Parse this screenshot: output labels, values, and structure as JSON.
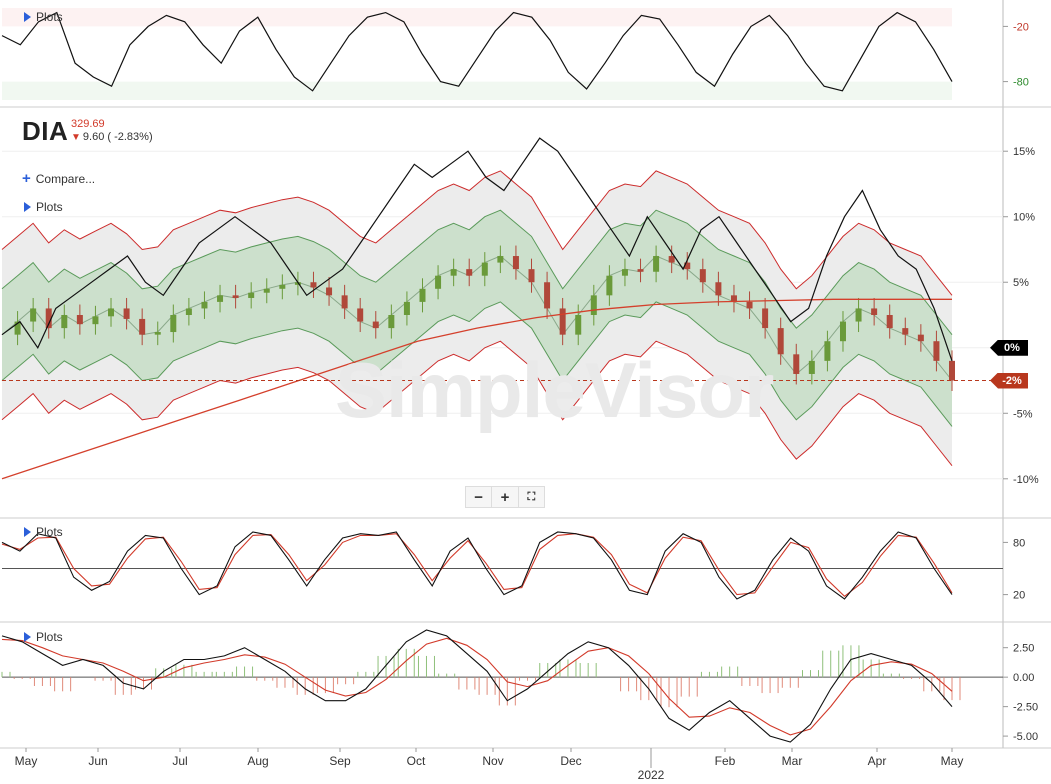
{
  "window": {
    "symbol": "DIA",
    "price": "329.69",
    "change": "9.60 ( -2.83%)",
    "compare_label": "Compare...",
    "plots_label": "Plots"
  },
  "watermark": "SimpleVisor",
  "zoom": {
    "minus": "−",
    "plus": "+",
    "fit": "⛶"
  },
  "colors": {
    "candle_up": "#6a9a3a",
    "candle_down": "#b0483a",
    "band_outer": "#cc2b2b",
    "band_inner": "#5a9a5a",
    "ma_long": "#d4402c",
    "price_line": "#111111",
    "badge_zero": "#000000",
    "badge_last": "#b8371d"
  },
  "icons": {
    "plots": "triangle-right-icon",
    "compare": "plus-icon",
    "change": "arrow-down-icon"
  },
  "chart_data": [
    {
      "panel": "top-oscillator",
      "type": "line",
      "y_ticks": [
        "-20",
        "-80"
      ],
      "ylim": [
        -100,
        0
      ],
      "series": [
        {
          "values": [
            -30,
            -40,
            -15,
            -5,
            -60,
            -75,
            -85,
            -40,
            -20,
            -8,
            -15,
            -40,
            -60,
            -25,
            -10,
            -45,
            -75,
            -90,
            -60,
            -30,
            -10,
            -5,
            -15,
            -50,
            -80,
            -85,
            -55,
            -25,
            -5,
            -10,
            -35,
            -70,
            -88,
            -60,
            -30,
            -8,
            -12,
            -40,
            -70,
            -85,
            -50,
            -20,
            -8,
            -30,
            -60,
            -85,
            -90,
            -55,
            -20,
            -5,
            -15,
            -45,
            -80
          ]
        }
      ]
    },
    {
      "panel": "main-price",
      "type": "candlestick",
      "x_ticks": [
        "May",
        "Jun",
        "Jul",
        "Aug",
        "Sep",
        "Oct",
        "Nov",
        "Dec",
        "2022",
        "Feb",
        "Mar",
        "Apr",
        "May"
      ],
      "y_ticks": [
        "15%",
        "10%",
        "5%",
        "0%",
        "-5%",
        "-10%"
      ],
      "ylim": [
        -12,
        17
      ],
      "candles": [
        1.0,
        2.0,
        3.0,
        1.5,
        2.5,
        1.8,
        2.4,
        3.0,
        2.2,
        1.0,
        1.2,
        2.5,
        3.0,
        3.5,
        4.0,
        3.8,
        4.2,
        4.5,
        4.8,
        5.0,
        4.6,
        4.0,
        3.0,
        2.0,
        1.5,
        2.5,
        3.5,
        4.5,
        5.5,
        6.0,
        5.5,
        6.5,
        7.0,
        6.0,
        5.0,
        3.0,
        1.0,
        2.5,
        4.0,
        5.5,
        6.0,
        5.8,
        7.0,
        6.5,
        6.0,
        5.0,
        4.0,
        3.5,
        3.0,
        1.5,
        -0.5,
        -2.0,
        -1.0,
        0.5,
        2.0,
        3.0,
        2.5,
        1.5,
        1.0,
        0.5,
        -1.0,
        -2.5
      ],
      "price_line": [
        1,
        2,
        0,
        3,
        4,
        5,
        6,
        7,
        5,
        4,
        6,
        8,
        9,
        10,
        9,
        8,
        6,
        4,
        5,
        6,
        8,
        10,
        12,
        14,
        13,
        14,
        15,
        13,
        12,
        14,
        16,
        15,
        13,
        11,
        9,
        7,
        10,
        8,
        6,
        9,
        10,
        8,
        6,
        4,
        2,
        3,
        7,
        10,
        12,
        9,
        7,
        6,
        3,
        -1
      ],
      "ma_long": [
        -10,
        -8.5,
        -7,
        -5.5,
        -4,
        -2.5,
        -1,
        0.5,
        1.5,
        2.3,
        2.9,
        3.3,
        3.5,
        3.6,
        3.7,
        3.7,
        3.7
      ],
      "legend_badges": [
        {
          "label": "0%",
          "value": 0
        },
        {
          "label": "-2%",
          "value": -2.5
        }
      ]
    },
    {
      "panel": "stochastic",
      "type": "line",
      "y_ticks": [
        "80",
        "20"
      ],
      "ylim": [
        0,
        100
      ],
      "series": [
        {
          "values": [
            80,
            70,
            90,
            85,
            40,
            25,
            35,
            70,
            88,
            85,
            50,
            20,
            30,
            75,
            92,
            88,
            60,
            30,
            60,
            85,
            90,
            88,
            92,
            60,
            30,
            70,
            85,
            50,
            20,
            30,
            80,
            92,
            90,
            85,
            60,
            25,
            20,
            70,
            90,
            80,
            40,
            15,
            25,
            60,
            85,
            70,
            30,
            15,
            40,
            70,
            92,
            85,
            50,
            20
          ]
        },
        {
          "values": [
            78,
            72,
            85,
            86,
            50,
            30,
            32,
            62,
            84,
            86,
            58,
            26,
            28,
            66,
            88,
            89,
            66,
            36,
            54,
            80,
            88,
            88,
            90,
            66,
            36,
            62,
            82,
            56,
            26,
            28,
            72,
            88,
            90,
            86,
            66,
            32,
            22,
            62,
            86,
            82,
            48,
            20,
            22,
            52,
            80,
            74,
            38,
            18,
            34,
            64,
            88,
            86,
            56,
            22
          ]
        }
      ]
    },
    {
      "panel": "macd",
      "type": "line",
      "y_ticks": [
        "2.50",
        "0.00",
        "-2.50",
        "-5.00"
      ],
      "ylim": [
        -5.5,
        4
      ],
      "series": [
        {
          "values": [
            3.5,
            3.0,
            2.0,
            1.0,
            1.5,
            1.0,
            -0.5,
            -1.0,
            0.5,
            1.5,
            1.5,
            1.8,
            2.5,
            1.5,
            0.5,
            -1.0,
            -2.0,
            -2.0,
            -1.0,
            1.0,
            3.0,
            4.0,
            3.5,
            2.0,
            0.5,
            -2.0,
            -1.0,
            0.5,
            2.0,
            3.0,
            2.5,
            1.0,
            -1.0,
            -3.5,
            -4.5,
            -3.0,
            -2.0,
            -3.5,
            -5.0,
            -5.5,
            -4.0,
            -1.0,
            1.5,
            2.0,
            1.5,
            1.0,
            -0.5,
            -2.5
          ]
        },
        {
          "values": [
            3.2,
            3.1,
            2.5,
            1.8,
            1.5,
            1.2,
            0.5,
            -0.3,
            0.0,
            0.8,
            1.2,
            1.5,
            1.9,
            1.7,
            1.1,
            0.0,
            -1.1,
            -1.6,
            -1.3,
            -0.2,
            1.4,
            2.8,
            3.3,
            2.7,
            1.5,
            -0.4,
            -0.8,
            -0.3,
            1.0,
            2.2,
            2.5,
            1.8,
            0.3,
            -1.8,
            -3.4,
            -3.3,
            -2.6,
            -3.0,
            -4.1,
            -4.9,
            -4.4,
            -2.5,
            -0.3,
            1.0,
            1.3,
            1.1,
            0.3,
            -1.2
          ]
        }
      ]
    }
  ]
}
